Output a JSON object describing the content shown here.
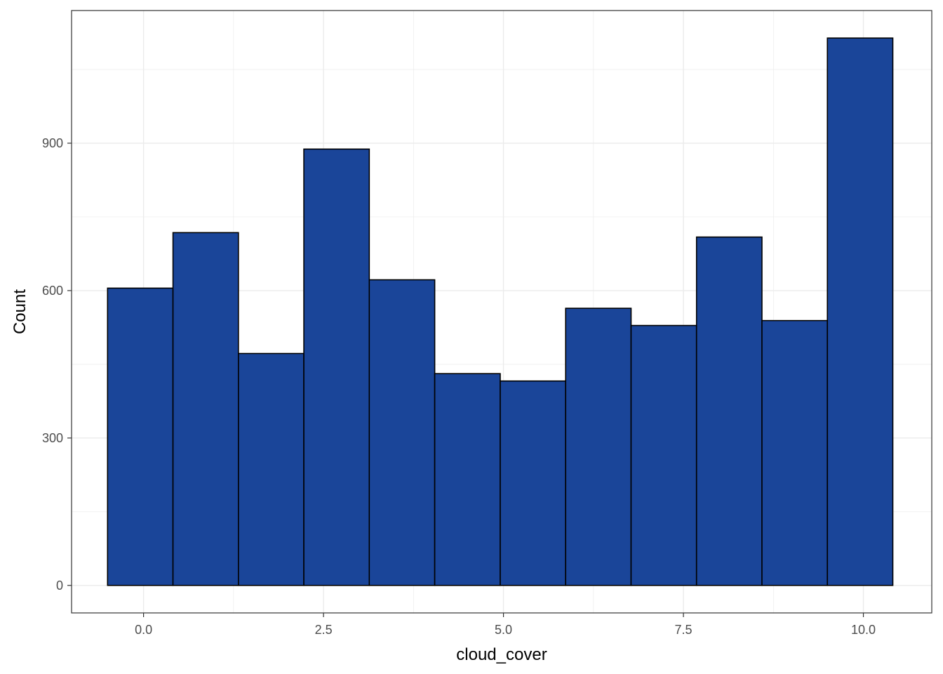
{
  "chart_data": {
    "type": "bar",
    "subtype": "histogram",
    "bins": [
      {
        "start": -0.5,
        "end": 0.409,
        "count": 605
      },
      {
        "start": 0.409,
        "end": 1.318,
        "count": 718
      },
      {
        "start": 1.318,
        "end": 2.227,
        "count": 472
      },
      {
        "start": 2.227,
        "end": 3.136,
        "count": 888
      },
      {
        "start": 3.136,
        "end": 4.045,
        "count": 622
      },
      {
        "start": 4.045,
        "end": 4.955,
        "count": 431
      },
      {
        "start": 4.955,
        "end": 5.864,
        "count": 416
      },
      {
        "start": 5.864,
        "end": 6.773,
        "count": 564
      },
      {
        "start": 6.773,
        "end": 7.682,
        "count": 529
      },
      {
        "start": 7.682,
        "end": 8.591,
        "count": 709
      },
      {
        "start": 8.591,
        "end": 9.5,
        "count": 539
      },
      {
        "start": 9.5,
        "end": 10.409,
        "count": 1114
      }
    ],
    "xlabel": "cloud_cover",
    "ylabel": "Count",
    "xlim": [
      -1.0,
      10.95
    ],
    "ylim": [
      -56,
      1170
    ],
    "x_ticks": [
      {
        "value": 0,
        "label": "0.0"
      },
      {
        "value": 2.5,
        "label": "2.5"
      },
      {
        "value": 5,
        "label": "5.0"
      },
      {
        "value": 7.5,
        "label": "7.5"
      },
      {
        "value": 10,
        "label": "10.0"
      }
    ],
    "x_minor_ticks": [
      1.25,
      3.75,
      6.25,
      8.75
    ],
    "y_ticks": [
      {
        "value": 0,
        "label": "0"
      },
      {
        "value": 300,
        "label": "300"
      },
      {
        "value": 600,
        "label": "600"
      },
      {
        "value": 900,
        "label": "900"
      }
    ],
    "y_minor_ticks": [
      150,
      450,
      750,
      1050
    ],
    "grid": true,
    "legend": "none",
    "colors": {
      "fill": "#1A4599",
      "outline": "#000000",
      "grid": "#ebebeb",
      "panel_border": "#333333"
    }
  }
}
